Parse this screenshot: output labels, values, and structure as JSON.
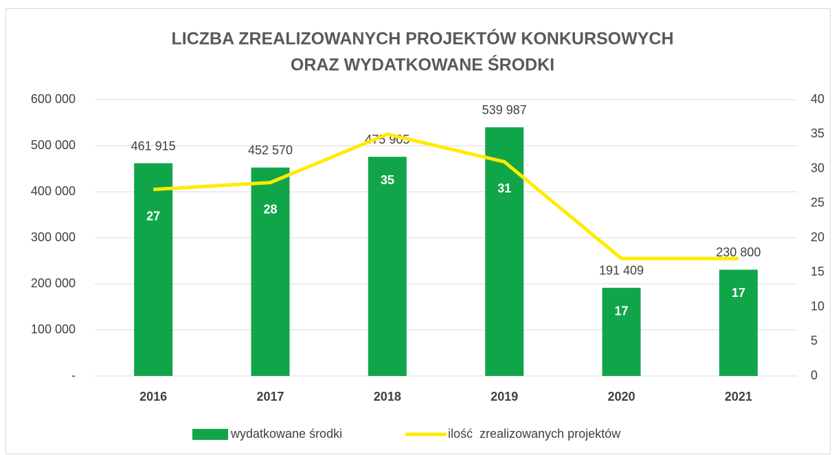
{
  "chart_data": {
    "type": "bar-line",
    "title": [
      "LICZBA ZREALIZOWANYCH PROJEKTÓW KONKURSOWYCH",
      "ORAZ WYDATKOWANE ŚRODKI"
    ],
    "categories": [
      "2016",
      "2017",
      "2018",
      "2019",
      "2020",
      "2021"
    ],
    "series": [
      {
        "name": "wydatkowane środki",
        "type": "bar",
        "color": "#11a54a",
        "values": [
          461915,
          452570,
          475905,
          539987,
          191409,
          230800
        ],
        "value_labels": [
          "461 915",
          "452 570",
          "475 905",
          "539 987",
          "191 409",
          "230 800"
        ]
      },
      {
        "name": "ilość  zrealizowanych projektów",
        "type": "line",
        "axis": "y2",
        "color": "#ffeb00",
        "values": [
          27,
          28,
          35,
          31,
          17,
          17
        ]
      }
    ],
    "ylim": [
      0,
      600000
    ],
    "yticks": [
      {
        "value": 0,
        "label": "-"
      },
      {
        "value": 100000,
        "label": "100 000"
      },
      {
        "value": 200000,
        "label": "200 000"
      },
      {
        "value": 300000,
        "label": "300 000"
      },
      {
        "value": 400000,
        "label": "400 000"
      },
      {
        "value": 500000,
        "label": "500 000"
      },
      {
        "value": 600000,
        "label": "600 000"
      }
    ],
    "y2lim": [
      0,
      40
    ],
    "y2ticks": [
      0,
      5,
      10,
      15,
      20,
      25,
      30,
      35,
      40
    ],
    "grid": true,
    "legend": "bottom"
  }
}
